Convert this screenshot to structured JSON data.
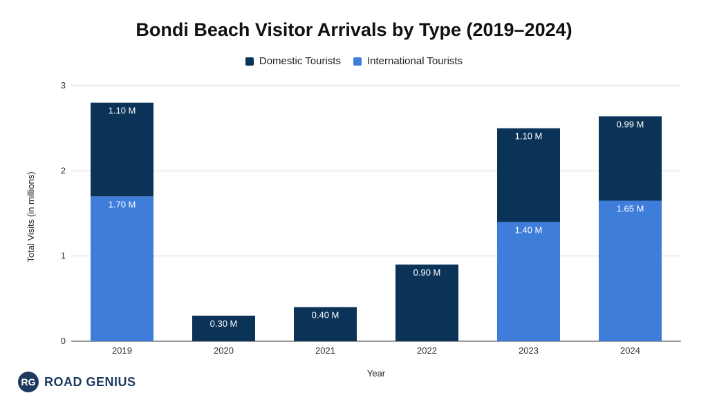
{
  "chart_data": {
    "type": "bar",
    "stacked": true,
    "title": "Bondi Beach Visitor Arrivals by Type (2019–2024)",
    "xlabel": "Year",
    "ylabel": "Total Visits (in millions)",
    "categories": [
      "2019",
      "2020",
      "2021",
      "2022",
      "2023",
      "2024"
    ],
    "ylim": [
      0,
      3
    ],
    "yticks": [
      "0",
      "1",
      "2",
      "3"
    ],
    "grid": true,
    "legend_position": "top",
    "series": [
      {
        "name": "International Tourists",
        "color": "#3f7ddb",
        "values": [
          1.7,
          0,
          0,
          0,
          1.4,
          1.65
        ],
        "labels": [
          "1.70 M",
          "",
          "",
          "",
          "1.40 M",
          "1.65 M"
        ]
      },
      {
        "name": "Domestic Tourists",
        "color": "#0b3358",
        "values": [
          1.1,
          0.3,
          0.4,
          0.9,
          1.1,
          0.99
        ],
        "labels": [
          "1.10 M",
          "0.30 M",
          "0.40 M",
          "0.90 M",
          "1.10 M",
          "0.99 M"
        ]
      }
    ]
  },
  "legend": {
    "items": [
      {
        "label": "Domestic Tourists",
        "color": "#0b3358"
      },
      {
        "label": "International Tourists",
        "color": "#3f7ddb"
      }
    ]
  },
  "logo": {
    "mark": "RG",
    "text": "ROAD GENIUS"
  }
}
